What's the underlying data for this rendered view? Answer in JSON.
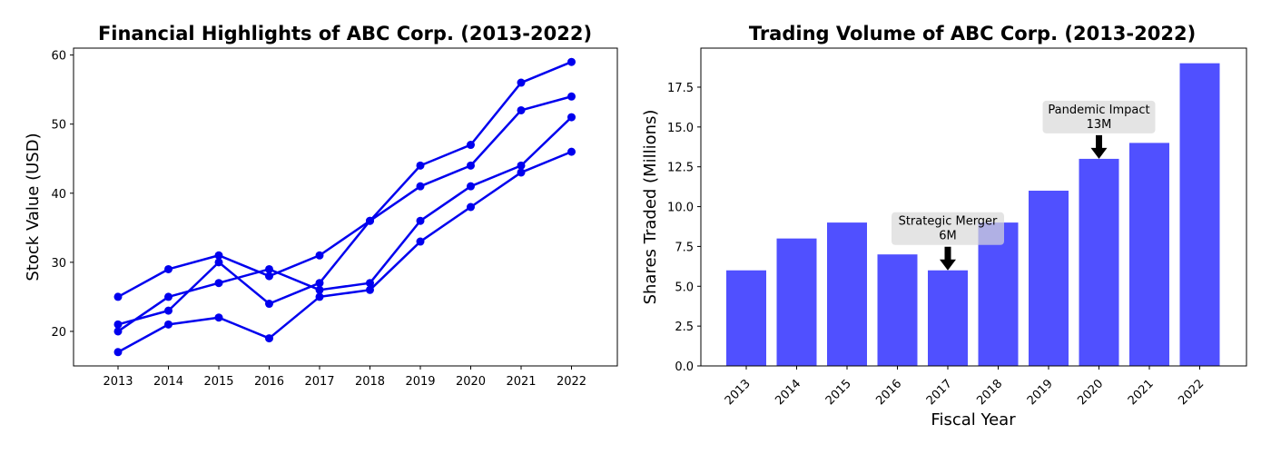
{
  "chart_data": [
    {
      "type": "line",
      "title": "Financial Highlights of ABC Corp. (2013-2022)",
      "xlabel": "",
      "ylabel": "Stock Value (USD)",
      "x": [
        "2013",
        "2014",
        "2015",
        "2016",
        "2017",
        "2018",
        "2019",
        "2020",
        "2021",
        "2022"
      ],
      "ylim": [
        15,
        61
      ],
      "yticks": [
        20,
        30,
        40,
        50,
        60
      ],
      "grid": false,
      "color": "#0000ee",
      "series": [
        {
          "values": [
            25,
            29,
            31,
            28,
            31,
            36,
            44,
            47,
            56,
            59
          ]
        },
        {
          "values": [
            21,
            23,
            30,
            24,
            27,
            36,
            41,
            44,
            52,
            54
          ]
        },
        {
          "values": [
            20,
            25,
            27,
            29,
            26,
            27,
            36,
            41,
            44,
            51
          ]
        },
        {
          "values": [
            17,
            21,
            22,
            19,
            25,
            26,
            33,
            38,
            43,
            46
          ]
        }
      ]
    },
    {
      "type": "bar",
      "title": "Trading Volume of ABC Corp. (2013-2022)",
      "xlabel": "Fiscal Year",
      "ylabel": "Shares Traded (Millions)",
      "categories": [
        "2013",
        "2014",
        "2015",
        "2016",
        "2017",
        "2018",
        "2019",
        "2020",
        "2021",
        "2022"
      ],
      "values": [
        6,
        8,
        9,
        7,
        6,
        9,
        11,
        13,
        14,
        19
      ],
      "ylim": [
        0,
        19.95
      ],
      "yticks": [
        "0.0",
        "2.5",
        "5.0",
        "7.5",
        "10.0",
        "12.5",
        "15.0",
        "17.5"
      ],
      "grid": false,
      "color": "#5050ff",
      "annotations": [
        {
          "category": "2017",
          "value": 6,
          "lines": [
            "Strategic Merger",
            "6M"
          ]
        },
        {
          "category": "2020",
          "value": 13,
          "lines": [
            "Pandemic Impact",
            "13M"
          ]
        }
      ]
    }
  ]
}
